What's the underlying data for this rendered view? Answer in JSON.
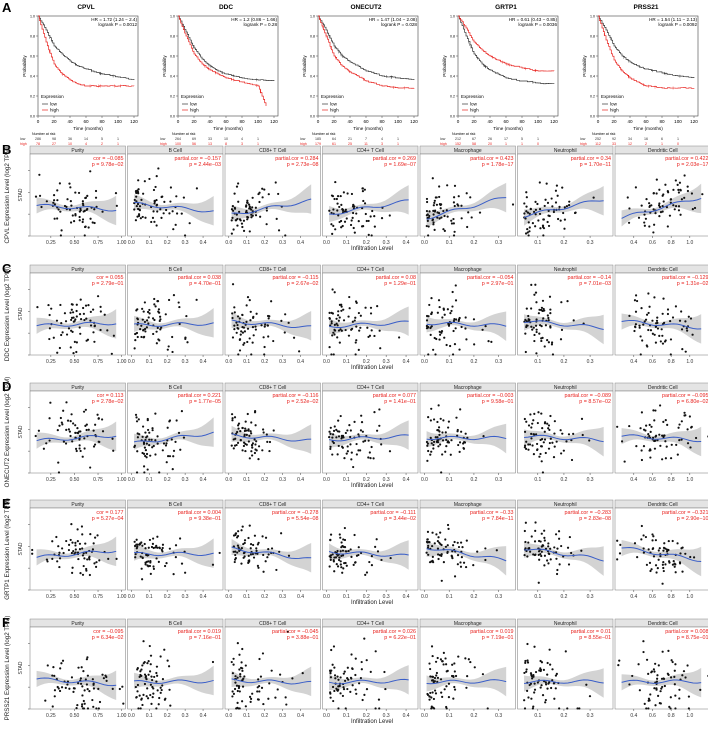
{
  "figure": {
    "panel_labels": [
      "A",
      "B",
      "C",
      "D",
      "E",
      "F"
    ]
  },
  "km": {
    "plots": [
      {
        "gene": "CPVL",
        "hr": "HR = 1.72 (1.24 − 2.4)",
        "logrank": "logrank P = 0.0012",
        "risk_low": [
          "286",
          "98",
          "36",
          "14",
          "5",
          "1"
        ],
        "risk_high": [
          "78",
          "27",
          "10",
          "4",
          "2",
          "1"
        ]
      },
      {
        "gene": "DDC",
        "hr": "HR = 1.2 (0.86 − 1.66)",
        "logrank": "logrank P = 0.28",
        "risk_low": [
          "264",
          "69",
          "33",
          "10",
          "4",
          "1"
        ],
        "risk_high": [
          "100",
          "56",
          "13",
          "8",
          "3",
          "1"
        ]
      },
      {
        "gene": "ONECUT2",
        "hr": "HR = 1.47 (1.04 − 2.08)",
        "logrank": "logrank P = 0.028",
        "risk_low": [
          "185",
          "64",
          "21",
          "7",
          "4",
          "1"
        ],
        "risk_high": [
          "179",
          "61",
          "25",
          "11",
          "3",
          "1"
        ]
      },
      {
        "gene": "GRTP1",
        "hr": "HR = 0.61 (0.43 − 0.85)",
        "logrank": "logrank P = 0.0036",
        "risk_low": [
          "212",
          "67",
          "26",
          "17",
          "5",
          "1"
        ],
        "risk_high": [
          "152",
          "58",
          "20",
          "1",
          "1",
          "0"
        ]
      },
      {
        "gene": "PRSS21",
        "hr": "HR = 1.54 (1.11 − 2.13)",
        "logrank": "logrank P = 0.0092",
        "risk_low": [
          "252",
          "92",
          "34",
          "16",
          "6",
          "1"
        ],
        "risk_high": [
          "112",
          "33",
          "12",
          "2",
          "1",
          "0"
        ]
      }
    ],
    "ylabel": "Probability",
    "xlabel": "Time (months)",
    "legend_title": "Expression",
    "legend_low": "low",
    "legend_high": "high",
    "risk_title": "Number at risk",
    "risk_row_low": "low",
    "risk_row_high": "high",
    "y_ticks": [
      "0.0",
      "0.2",
      "0.4",
      "0.6",
      "0.8",
      "1.0"
    ],
    "x_ticks": [
      "0",
      "20",
      "40",
      "60",
      "80",
      "100",
      "120"
    ]
  },
  "timer": {
    "cells": [
      "Purity",
      "B Cell",
      "CD8+ T Cell",
      "CD4+ T Cell",
      "Macrophage",
      "Neutrophil",
      "Dendritic Cell"
    ],
    "xlabel": "Infiltration Level",
    "stad": "STAD",
    "cor_prefix_first": "cor = ",
    "cor_prefix_rest": "partial.cor = ",
    "x_ticks": [
      [
        "0.25",
        "0.50",
        "0.75",
        "1.00"
      ],
      [
        "0.0",
        "0.1",
        "0.2",
        "0.3",
        "0.4"
      ],
      [
        "0.0",
        "0.1",
        "0.2",
        "0.3",
        "0.4"
      ],
      [
        "0.0",
        "0.1",
        "0.2",
        "0.3",
        "0.4"
      ],
      [
        "0.0",
        "0.1",
        "0.2",
        "0.3"
      ],
      [
        "0.1",
        "0.2",
        "0.3"
      ],
      [
        "0.4",
        "0.6",
        "0.8",
        "1.0"
      ]
    ],
    "rows": [
      {
        "label": "B",
        "ylabel": "CPVL Expression Level (log2 TPM)",
        "y_ticks": [
          "0",
          "2",
          "4",
          "6"
        ],
        "stats": [
          [
            "−0.085",
            "9.78e−02"
          ],
          [
            "−0.157",
            "2.44e−03"
          ],
          [
            "0.284",
            "2.73e−08"
          ],
          [
            "0.269",
            "1.69e−07"
          ],
          [
            "0.423",
            "1.78e−17"
          ],
          [
            "0.34",
            "1.70e−11"
          ],
          [
            "0.422",
            "2.03e−17"
          ]
        ]
      },
      {
        "label": "C",
        "ylabel": "DDC Expression Level (log2 TPM)",
        "y_ticks": [
          "0",
          "2",
          "4",
          "6"
        ],
        "stats": [
          [
            "0.055",
            "2.79e−01"
          ],
          [
            "0.038",
            "4.70e−01"
          ],
          [
            "−0.115",
            "2.67e−02"
          ],
          [
            "0.08",
            "1.29e−01"
          ],
          [
            "−0.054",
            "2.97e−01"
          ],
          [
            "−0.14",
            "7.01e−03"
          ],
          [
            "−0.129",
            "1.31e−02"
          ]
        ]
      },
      {
        "label": "D",
        "ylabel": "ONECUT2 Expression Level (log2 TPM)",
        "y_ticks": [
          "0",
          "2",
          "4",
          "6"
        ],
        "stats": [
          [
            "0.113",
            "2.78e−02"
          ],
          [
            "0.221",
            "1.77e−05"
          ],
          [
            "−0.116",
            "2.52e−02"
          ],
          [
            "0.077",
            "1.41e−01"
          ],
          [
            "−0.003",
            "9.58e−01"
          ],
          [
            "−0.089",
            "8.57e−02"
          ],
          [
            "−0.095",
            "6.80e−02"
          ]
        ]
      },
      {
        "label": "E",
        "ylabel": "GRTP1 Expression Level (log2 TPM)",
        "y_ticks": [
          "0",
          "2",
          "4",
          "6"
        ],
        "stats": [
          [
            "0.177",
            "5.27e−04"
          ],
          [
            "0.004",
            "9.38e−01"
          ],
          [
            "−0.278",
            "5.54e−08"
          ],
          [
            "−0.111",
            "3.44e−02"
          ],
          [
            "−0.33",
            "7.84e−11"
          ],
          [
            "−0.283",
            "2.83e−08"
          ],
          [
            "−0.321",
            "2.90e−10"
          ]
        ]
      },
      {
        "label": "F",
        "ylabel": "PRSS21 Expression Level (log2 TPM)",
        "y_ticks": [
          "0",
          "2",
          "4",
          "6"
        ],
        "stats": [
          [
            "−0.095",
            "6.34e−02"
          ],
          [
            "0.019",
            "7.16e−01"
          ],
          [
            "−0.045",
            "3.88e−01"
          ],
          [
            "0.026",
            "6.22e−01"
          ],
          [
            "0.019",
            "7.19e−01"
          ],
          [
            "0.01",
            "8.55e−01"
          ],
          [
            "0.008",
            "8.75e−01"
          ]
        ]
      }
    ]
  },
  "chart_data": [
    {
      "type": "line",
      "subtype": "kaplan-meier",
      "title": "CPVL",
      "xlabel": "Time (months)",
      "ylabel": "Probability",
      "xlim": [
        0,
        125
      ],
      "ylim": [
        0,
        1
      ],
      "series": [
        {
          "name": "low",
          "color": "#333333",
          "x": [
            0,
            10,
            20,
            30,
            40,
            50,
            60,
            80,
            100,
            120
          ],
          "y": [
            1,
            0.86,
            0.7,
            0.62,
            0.55,
            0.5,
            0.47,
            0.42,
            0.39,
            0.36
          ]
        },
        {
          "name": "high",
          "color": "#e8221e",
          "x": [
            0,
            10,
            20,
            30,
            40,
            50,
            60,
            80,
            100,
            120
          ],
          "y": [
            1,
            0.74,
            0.52,
            0.42,
            0.36,
            0.32,
            0.3,
            0.3,
            0.3,
            0.3
          ]
        }
      ]
    },
    {
      "type": "line",
      "subtype": "kaplan-meier",
      "title": "DDC",
      "xlabel": "Time (months)",
      "ylabel": "Probability",
      "xlim": [
        0,
        125
      ],
      "ylim": [
        0,
        1
      ],
      "series": [
        {
          "name": "low",
          "color": "#333333",
          "x": [
            0,
            10,
            20,
            30,
            40,
            50,
            60,
            80,
            100,
            120
          ],
          "y": [
            1,
            0.84,
            0.68,
            0.57,
            0.5,
            0.45,
            0.42,
            0.38,
            0.36,
            0.35
          ]
        },
        {
          "name": "high",
          "color": "#e8221e",
          "x": [
            0,
            10,
            20,
            30,
            40,
            50,
            60,
            80,
            100,
            110
          ],
          "y": [
            1,
            0.8,
            0.62,
            0.52,
            0.46,
            0.42,
            0.38,
            0.34,
            0.3,
            0.1
          ]
        }
      ]
    },
    {
      "type": "line",
      "subtype": "kaplan-meier",
      "title": "ONECUT2",
      "xlabel": "Time (months)",
      "ylabel": "Probability",
      "xlim": [
        0,
        125
      ],
      "ylim": [
        0,
        1
      ],
      "series": [
        {
          "name": "low",
          "color": "#333333",
          "x": [
            0,
            10,
            20,
            30,
            40,
            50,
            60,
            80,
            100,
            120
          ],
          "y": [
            1,
            0.86,
            0.7,
            0.6,
            0.54,
            0.5,
            0.45,
            0.4,
            0.38,
            0.36
          ]
        },
        {
          "name": "high",
          "color": "#e8221e",
          "x": [
            0,
            10,
            20,
            30,
            40,
            50,
            60,
            80,
            100,
            120
          ],
          "y": [
            1,
            0.8,
            0.6,
            0.5,
            0.44,
            0.4,
            0.35,
            0.3,
            0.28,
            0.28
          ]
        }
      ]
    },
    {
      "type": "line",
      "subtype": "kaplan-meier",
      "title": "GRTP1",
      "xlabel": "Time (months)",
      "ylabel": "Probability",
      "xlim": [
        0,
        125
      ],
      "ylim": [
        0,
        1
      ],
      "series": [
        {
          "name": "low",
          "color": "#333333",
          "x": [
            0,
            10,
            20,
            30,
            40,
            50,
            60,
            80,
            100,
            120
          ],
          "y": [
            1,
            0.8,
            0.62,
            0.52,
            0.46,
            0.42,
            0.38,
            0.35,
            0.33,
            0.32
          ]
        },
        {
          "name": "high",
          "color": "#e8221e",
          "x": [
            0,
            10,
            20,
            30,
            40,
            50,
            60,
            80,
            100,
            120
          ],
          "y": [
            1,
            0.88,
            0.74,
            0.66,
            0.6,
            0.56,
            0.52,
            0.48,
            0.45,
            0.45
          ]
        }
      ]
    },
    {
      "type": "line",
      "subtype": "kaplan-meier",
      "title": "PRSS21",
      "xlabel": "Time (months)",
      "ylabel": "Probability",
      "xlim": [
        0,
        125
      ],
      "ylim": [
        0,
        1
      ],
      "series": [
        {
          "name": "low",
          "color": "#333333",
          "x": [
            0,
            10,
            20,
            30,
            40,
            50,
            60,
            80,
            100,
            120
          ],
          "y": [
            1,
            0.86,
            0.7,
            0.6,
            0.54,
            0.5,
            0.47,
            0.43,
            0.4,
            0.38
          ]
        },
        {
          "name": "high",
          "color": "#e8221e",
          "x": [
            0,
            10,
            20,
            30,
            40,
            50,
            60,
            80,
            100,
            120
          ],
          "y": [
            1,
            0.76,
            0.56,
            0.45,
            0.38,
            0.34,
            0.3,
            0.28,
            0.28,
            0.28
          ]
        }
      ]
    },
    {
      "type": "scatter",
      "subtype": "timer-correlation-grid",
      "xlabel": "Infiltration Level",
      "genes": [
        "CPVL",
        "DDC",
        "ONECUT2",
        "GRTP1",
        "PRSS21"
      ],
      "cells": [
        "Purity",
        "B Cell",
        "CD8+ T Cell",
        "CD4+ T Cell",
        "Macrophage",
        "Neutrophil",
        "Dendritic Cell"
      ],
      "xlim": [
        [
          0.05,
          1.02
        ],
        [
          -0.01,
          0.5
        ],
        [
          -0.01,
          0.5
        ],
        [
          -0.01,
          0.45
        ],
        [
          -0.01,
          0.36
        ],
        [
          0.03,
          0.38
        ],
        [
          0.22,
          1.2
        ]
      ],
      "ylim": [
        0,
        7.5
      ],
      "cor": [
        [
          -0.085,
          -0.157,
          0.284,
          0.269,
          0.423,
          0.34,
          0.422
        ],
        [
          0.055,
          0.038,
          -0.115,
          0.08,
          -0.054,
          -0.14,
          -0.129
        ],
        [
          0.113,
          0.221,
          -0.116,
          0.077,
          -0.003,
          -0.089,
          -0.095
        ],
        [
          0.177,
          0.004,
          -0.278,
          -0.111,
          -0.33,
          -0.283,
          -0.321
        ],
        [
          -0.095,
          0.019,
          -0.045,
          0.026,
          0.019,
          0.01,
          0.008
        ]
      ]
    }
  ]
}
